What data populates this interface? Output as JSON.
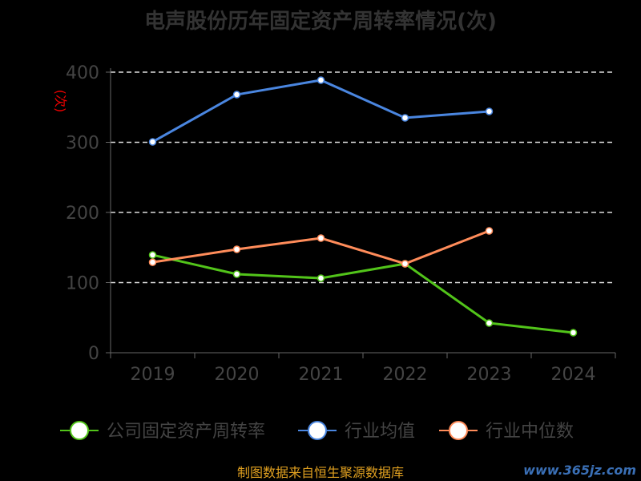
{
  "chart_data": {
    "type": "line",
    "title": "电声股份历年固定资产周转率情况(次)",
    "ylabel": "(次)",
    "xlabel": "",
    "categories": [
      "2019",
      "2020",
      "2021",
      "2022",
      "2023",
      "2024"
    ],
    "ylim": [
      0,
      400
    ],
    "yticks": [
      0,
      100,
      200,
      300,
      400
    ],
    "grid": true,
    "legend_position": "bottom",
    "series": [
      {
        "name": "公司固定资产周转率",
        "color": "#52c41a",
        "values": [
          139.4,
          112.0,
          106.3,
          126.9,
          42.3,
          28.6
        ]
      },
      {
        "name": "行业均值",
        "color": "#4a86e0",
        "values": [
          300.6,
          368.0,
          388.6,
          334.9,
          344.0,
          null
        ]
      },
      {
        "name": "行业中位数",
        "color": "#ff8c5a",
        "values": [
          129.0,
          147.4,
          163.4,
          126.9,
          173.7,
          null
        ]
      }
    ]
  },
  "footer": {
    "source": "制图数据来自恒生聚源数据库",
    "watermark": "www.365jz.com"
  }
}
